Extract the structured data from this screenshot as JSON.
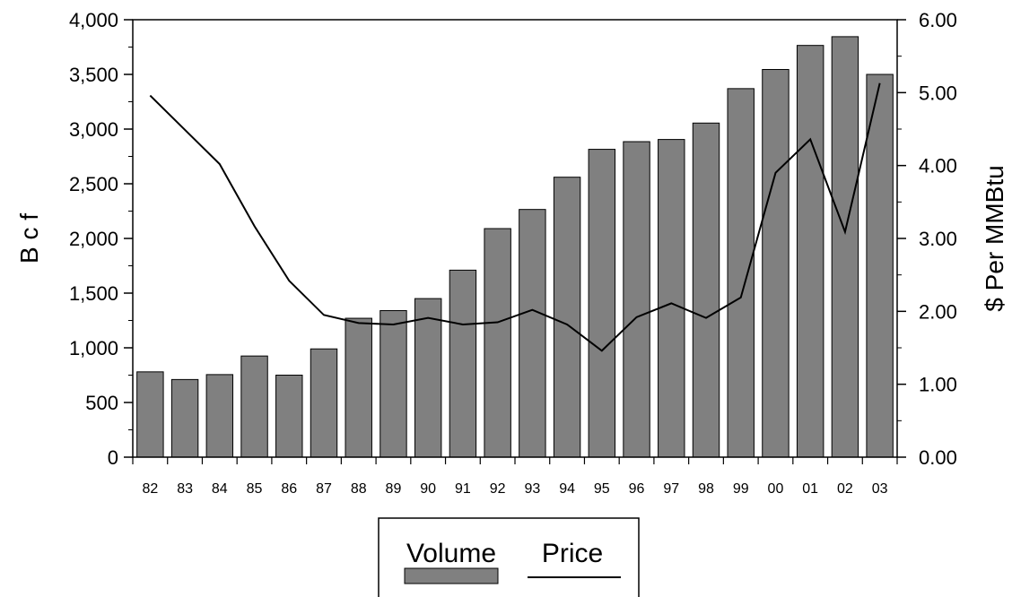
{
  "chart_data": {
    "type": "bar",
    "categories": [
      "82",
      "83",
      "84",
      "85",
      "86",
      "87",
      "88",
      "89",
      "90",
      "91",
      "92",
      "93",
      "94",
      "95",
      "96",
      "97",
      "98",
      "99",
      "00",
      "01",
      "02",
      "03"
    ],
    "series": [
      {
        "name": "Volume",
        "type": "bar",
        "axis": "left",
        "color": "#808080",
        "values": [
          780,
          710,
          755,
          925,
          750,
          990,
          1270,
          1340,
          1450,
          1710,
          2090,
          2265,
          2560,
          2815,
          2885,
          2905,
          3055,
          3370,
          3545,
          3765,
          3845,
          3500
        ]
      },
      {
        "name": "Price",
        "type": "line",
        "axis": "right",
        "color": "#000000",
        "values": [
          4.96,
          4.49,
          4.02,
          3.17,
          2.42,
          1.95,
          1.84,
          1.82,
          1.91,
          1.82,
          1.85,
          2.02,
          1.82,
          1.46,
          1.92,
          2.11,
          1.91,
          2.19,
          3.9,
          4.36,
          3.09,
          5.13
        ]
      }
    ],
    "ylabel": "B c f",
    "y2label": "$ Per MMBtu",
    "ylim": [
      0,
      4000
    ],
    "y2lim": [
      0,
      6
    ],
    "yticks": [
      "0",
      "500",
      "1,000",
      "1,500",
      "2,000",
      "2,500",
      "3,000",
      "3,500",
      "4,000"
    ],
    "y2ticks": [
      "0.00",
      "1.00",
      "2.00",
      "3.00",
      "4.00",
      "5.00",
      "6.00"
    ],
    "grid": false,
    "legend": {
      "position": "bottom",
      "items": [
        {
          "label": "Volume",
          "style": "bar"
        },
        {
          "label": "Price",
          "style": "line"
        }
      ]
    }
  }
}
